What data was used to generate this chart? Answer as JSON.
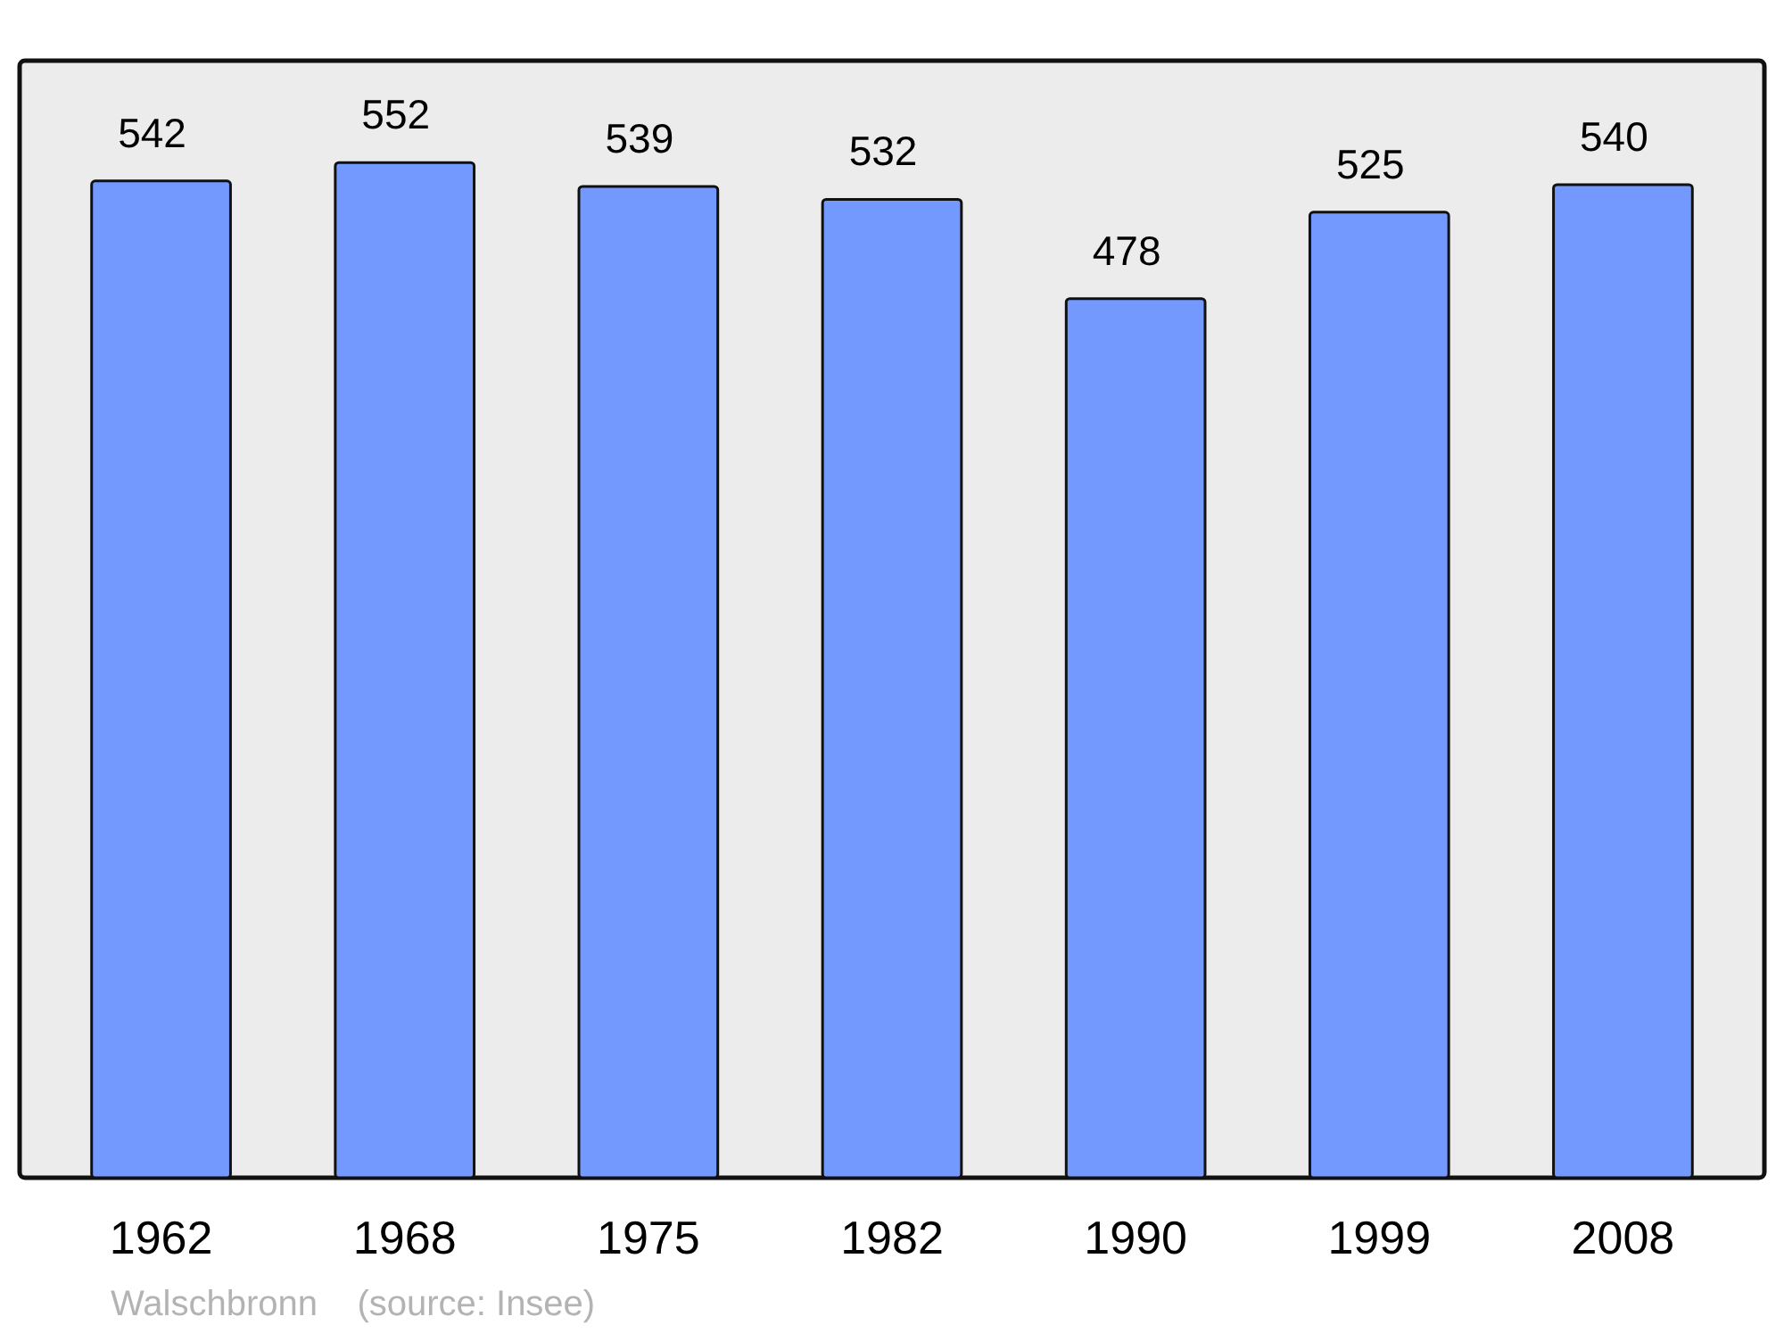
{
  "chart_data": {
    "type": "bar",
    "categories": [
      "1962",
      "1968",
      "1975",
      "1982",
      "1990",
      "1999",
      "2008"
    ],
    "values": [
      542,
      552,
      539,
      532,
      478,
      525,
      540
    ],
    "color": "#7399ff",
    "data_labels": true,
    "annotations": [
      "Walschbronn    (source: Insee)"
    ]
  }
}
